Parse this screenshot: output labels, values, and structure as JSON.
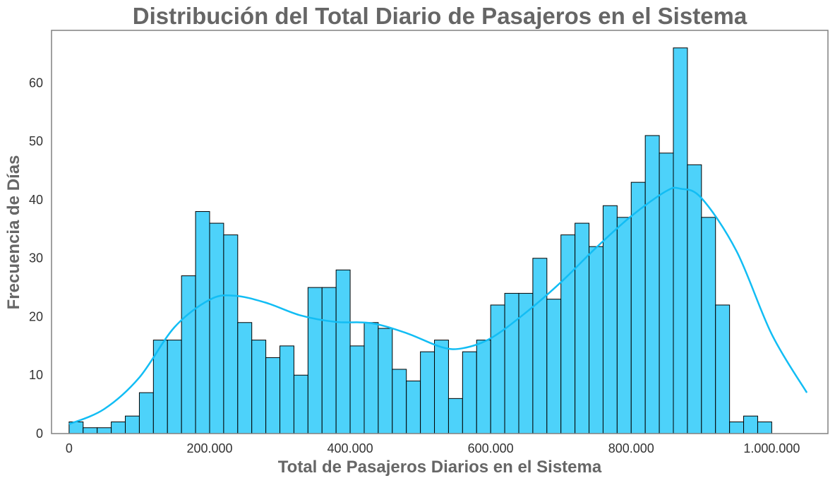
{
  "chart_data": {
    "type": "bar",
    "subtype": "histogram",
    "title": "Distribución del Total Diario de Pasajeros en el Sistema",
    "xlabel": "Total de Pasajeros Diarios en el Sistema",
    "ylabel": "Frecuencia de Días",
    "xlim": [
      -25000,
      1080000
    ],
    "ylim": [
      0,
      69
    ],
    "bin_width": 20000,
    "bin_edges_start": 0,
    "x_ticks": [
      0,
      200000,
      400000,
      600000,
      800000,
      1000000
    ],
    "x_tick_labels": [
      "0",
      "200.000",
      "400.000",
      "600.000",
      "800.000",
      "1.000.000"
    ],
    "y_ticks": [
      0,
      10,
      20,
      30,
      40,
      50,
      60
    ],
    "y_tick_labels": [
      "0",
      "10",
      "20",
      "30",
      "40",
      "50",
      "60"
    ],
    "grid": false,
    "bar_color": "#4dd2fa",
    "bar_edge_color": "#000000",
    "kde_color": "#12bdf4",
    "values": [
      2,
      1,
      1,
      2,
      3,
      7,
      16,
      16,
      27,
      38,
      36,
      34,
      19,
      16,
      13,
      15,
      10,
      25,
      25,
      28,
      15,
      19,
      18,
      11,
      9,
      14,
      16,
      6,
      14,
      16,
      22,
      24,
      24,
      30,
      23,
      34,
      36,
      32,
      39,
      37,
      43,
      51,
      48,
      66,
      46,
      37,
      22,
      2,
      3,
      2
    ],
    "kde": {
      "x": [
        0,
        50000,
        100000,
        150000,
        200000,
        235000,
        280000,
        330000,
        380000,
        430000,
        480000,
        530000,
        560000,
        600000,
        650000,
        700000,
        750000,
        800000,
        850000,
        870000,
        900000,
        950000,
        1000000,
        1050000
      ],
      "y": [
        1.6,
        4.2,
        9.6,
        18.2,
        22.9,
        23.6,
        22.4,
        20.2,
        19.1,
        18.9,
        17.2,
        14.8,
        14.6,
        16.3,
        20.7,
        25.9,
        31.8,
        37.2,
        41.5,
        41.9,
        40.3,
        31.2,
        17.0,
        7.0
      ]
    }
  }
}
